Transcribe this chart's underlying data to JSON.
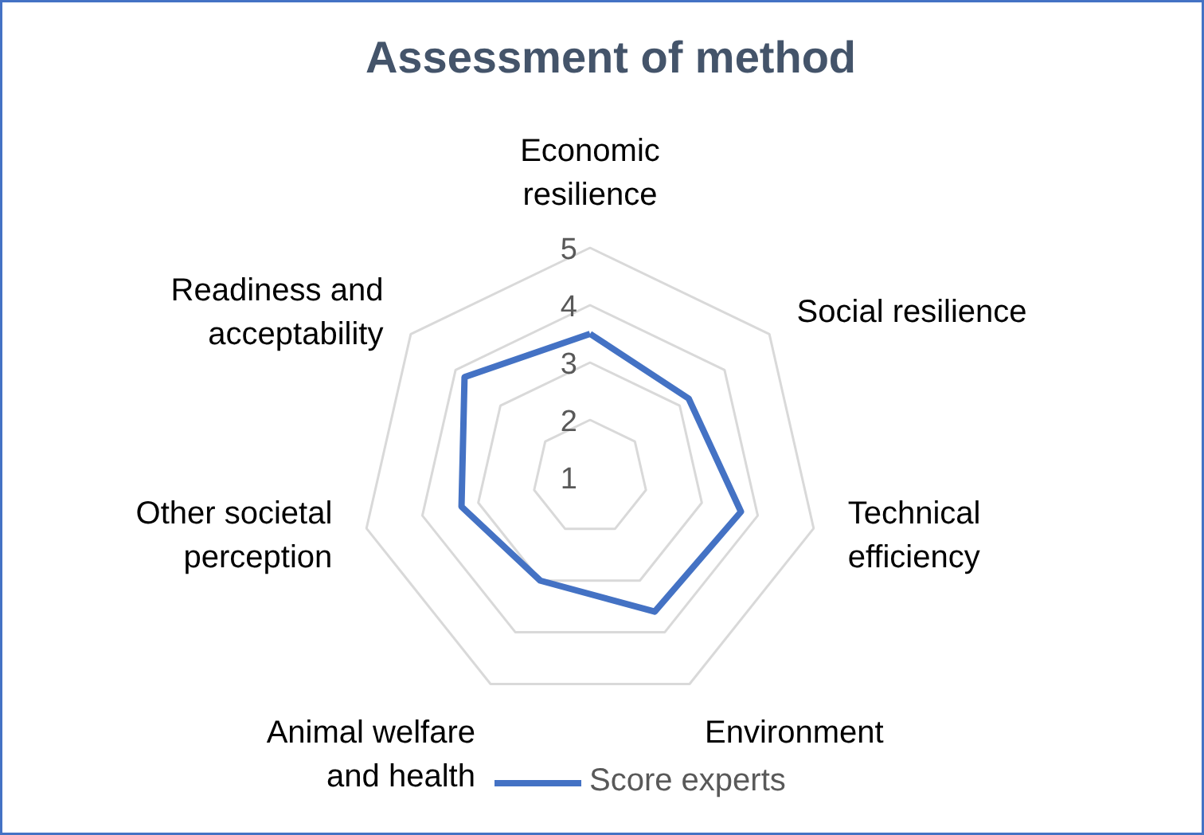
{
  "chart_data": {
    "type": "radar",
    "title": "Assessment of method",
    "categories": [
      "Economic\nresilience",
      "Social resilience",
      "Technical\nefficiency",
      "Environment",
      "Animal welfare\nand health",
      "Other societal\nperception",
      "Readiness and\nacceptability"
    ],
    "series": [
      {
        "name": "Score experts",
        "color": "#4472c4",
        "values": [
          3.5,
          3.2,
          3.7,
          3.6,
          3.0,
          3.3,
          3.8
        ]
      }
    ],
    "ylim": [
      1,
      5
    ],
    "yticks": [
      1,
      2,
      3,
      4,
      5
    ],
    "grid": true,
    "legend": "bottom",
    "marker": "none",
    "line_style": "solid"
  }
}
